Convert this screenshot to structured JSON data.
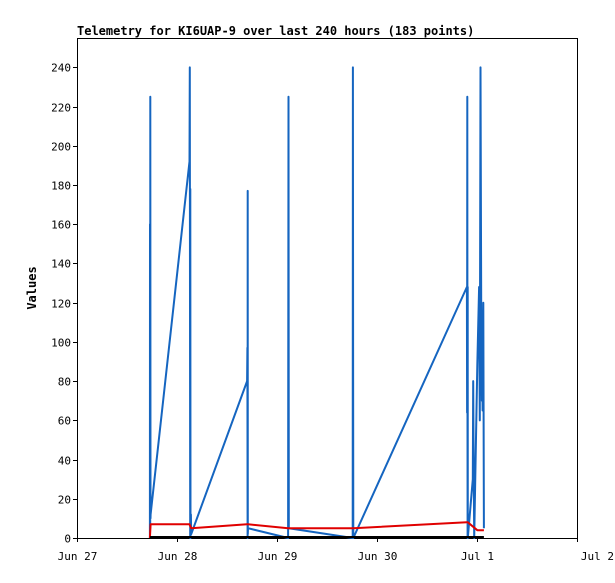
{
  "chart_data": {
    "type": "line",
    "title": "Telemetry for KI6UAP-9 over last 240 hours (183 points)",
    "xlabel": "",
    "ylabel": "Values",
    "x_ticks": [
      "Jun 27",
      "Jun 28",
      "Jun 29",
      "Jun 30",
      "Jul 1",
      "Jul 2"
    ],
    "x_tick_dates": [
      "2024-06-27",
      "2024-06-28",
      "2024-06-29",
      "2024-06-30",
      "2024-07-01",
      "2024-07-02"
    ],
    "y_ticks": [
      0,
      20,
      40,
      60,
      80,
      100,
      120,
      140,
      160,
      180,
      200,
      220,
      240
    ],
    "xlim": [
      "2024-06-27T00:00",
      "2024-07-02T00:00"
    ],
    "ylim": [
      0,
      255
    ],
    "grid": false,
    "series": [
      {
        "color": "#1565c0",
        "x": [
          "2024-06-27T17:30",
          "2024-06-27T17:31",
          "2024-06-27T17:34",
          "2024-06-27T17:36",
          "2024-06-27T17:38",
          "2024-06-27T17:40",
          "2024-06-28T03:00",
          "2024-06-28T03:05",
          "2024-06-28T03:10",
          "2024-06-28T03:12",
          "2024-06-28T03:15",
          "2024-06-28T03:20",
          "2024-06-28T03:25",
          "2024-06-28T16:50",
          "2024-06-28T16:54",
          "2024-06-28T16:56",
          "2024-06-28T16:58",
          "2024-06-28T17:00",
          "2024-06-28T17:03",
          "2024-06-29T02:40",
          "2024-06-29T02:43",
          "2024-06-29T02:46",
          "2024-06-29T02:50",
          "2024-06-29T18:10",
          "2024-06-29T18:13",
          "2024-06-29T18:16",
          "2024-06-29T18:18",
          "2024-06-30T21:35",
          "2024-06-30T21:38",
          "2024-06-30T21:40",
          "2024-06-30T21:42",
          "2024-06-30T21:44",
          "2024-06-30T21:46",
          "2024-06-30T21:48",
          "2024-06-30T23:00",
          "2024-06-30T23:05",
          "2024-06-30T23:10",
          "2024-06-30T23:20",
          "2024-07-01T00:05",
          "2024-07-01T00:30",
          "2024-07-01T00:40",
          "2024-07-01T00:50",
          "2024-07-01T01:00",
          "2024-07-01T01:10",
          "2024-07-01T01:15",
          "2024-07-01T01:20",
          "2024-07-01T01:25",
          "2024-07-01T01:30",
          "2024-07-01T01:40"
        ],
        "values": [
          0,
          160,
          5,
          225,
          10,
          12,
          192,
          240,
          0,
          178,
          0,
          12,
          2,
          80,
          97,
          0,
          177,
          2,
          5,
          0,
          113,
          225,
          5,
          0,
          240,
          97,
          0,
          128,
          64,
          225,
          120,
          0,
          128,
          0,
          30,
          80,
          50,
          0,
          88,
          128,
          60,
          240,
          120,
          70,
          95,
          65,
          80,
          120,
          5
        ]
      },
      {
        "color": "#e00000",
        "x": [
          "2024-06-27T17:30",
          "2024-06-27T17:40",
          "2024-06-28T03:00",
          "2024-06-28T03:25",
          "2024-06-28T16:50",
          "2024-06-28T17:03",
          "2024-06-29T02:40",
          "2024-06-29T02:50",
          "2024-06-29T18:10",
          "2024-06-29T18:18",
          "2024-06-30T21:35",
          "2024-06-30T21:48",
          "2024-07-01T00:05",
          "2024-07-01T01:40"
        ],
        "values": [
          0,
          7,
          7,
          5,
          7,
          7,
          5,
          5,
          5,
          5,
          8,
          8,
          4,
          4
        ]
      },
      {
        "color": "#000000",
        "x": [
          "2024-06-27T17:30",
          "2024-07-01T01:40"
        ],
        "values": [
          0.5,
          0.5
        ]
      }
    ]
  }
}
